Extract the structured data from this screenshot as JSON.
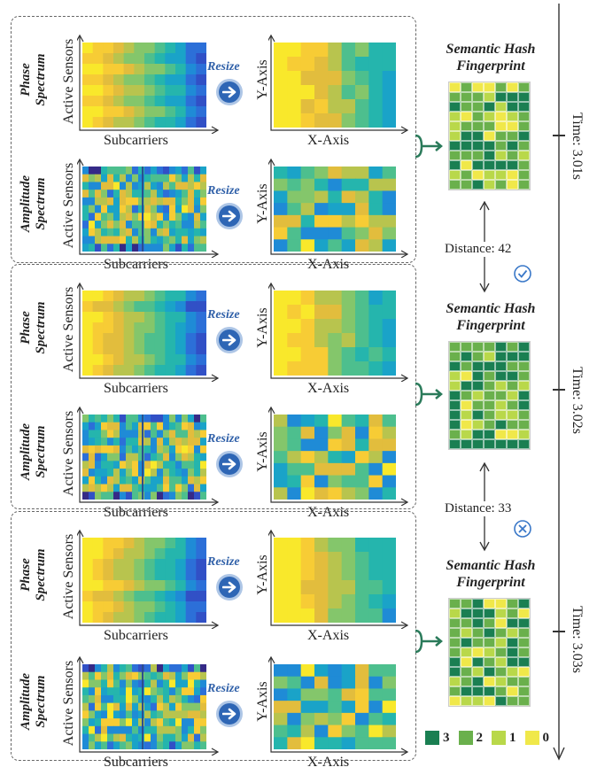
{
  "panels": [
    {
      "time": "Time: 3.01s",
      "rows": [
        {
          "label_top": "Phase",
          "label_bottom": "Spectrum",
          "ylabel": "Active Sensors",
          "xlabel": "Subcarriers",
          "out_ylabel": "Y-Axis",
          "out_xlabel": "X-Axis",
          "resize": "Resize"
        },
        {
          "label_top": "Amplitude",
          "label_bottom": "Spectrum",
          "ylabel": "Active Sensors",
          "xlabel": "Subcarriers",
          "out_ylabel": "Y-Axis",
          "out_xlabel": "X-Axis",
          "resize": "Resize"
        }
      ],
      "fingerprint_title": "Semantic Hash Fingerprint"
    },
    {
      "time": "Time: 3.02s",
      "rows": [
        {
          "label_top": "Phase",
          "label_bottom": "Spectrum",
          "ylabel": "Active Sensors",
          "xlabel": "Subcarriers",
          "out_ylabel": "Y-Axis",
          "out_xlabel": "X-Axis",
          "resize": "Resize"
        },
        {
          "label_top": "Amplitude",
          "label_bottom": "Spectrum",
          "ylabel": "Active Sensors",
          "xlabel": "Subcarriers",
          "out_ylabel": "Y-Axis",
          "out_xlabel": "X-Axis",
          "resize": "Resize"
        }
      ],
      "fingerprint_title": "Semantic Hash Fingerprint"
    },
    {
      "time": "Time: 3.03s",
      "rows": [
        {
          "label_top": "Phase",
          "label_bottom": "Spectrum",
          "ylabel": "Active Sensors",
          "xlabel": "Subcarriers",
          "out_ylabel": "Y-Axis",
          "out_xlabel": "X-Axis",
          "resize": "Resize"
        },
        {
          "label_top": "Amplitude",
          "label_bottom": "Spectrum",
          "ylabel": "Active Sensors",
          "xlabel": "Subcarriers",
          "out_ylabel": "Y-Axis",
          "out_xlabel": "X-Axis",
          "resize": "Resize"
        }
      ],
      "fingerprint_title": "Semantic Hash Fingerprint"
    }
  ],
  "distances": [
    {
      "text": "Distance: 42",
      "status": "match",
      "icon": "check-circle-icon"
    },
    {
      "text": "Distance: 33",
      "status": "mismatch",
      "icon": "cross-circle-icon"
    }
  ],
  "legend": [
    {
      "value": "3",
      "color": "#1a7f52"
    },
    {
      "value": "2",
      "color": "#6ab04c"
    },
    {
      "value": "1",
      "color": "#b9d84a"
    },
    {
      "value": "0",
      "color": "#f0e84a"
    }
  ],
  "accent_color": "#2e66b5"
}
